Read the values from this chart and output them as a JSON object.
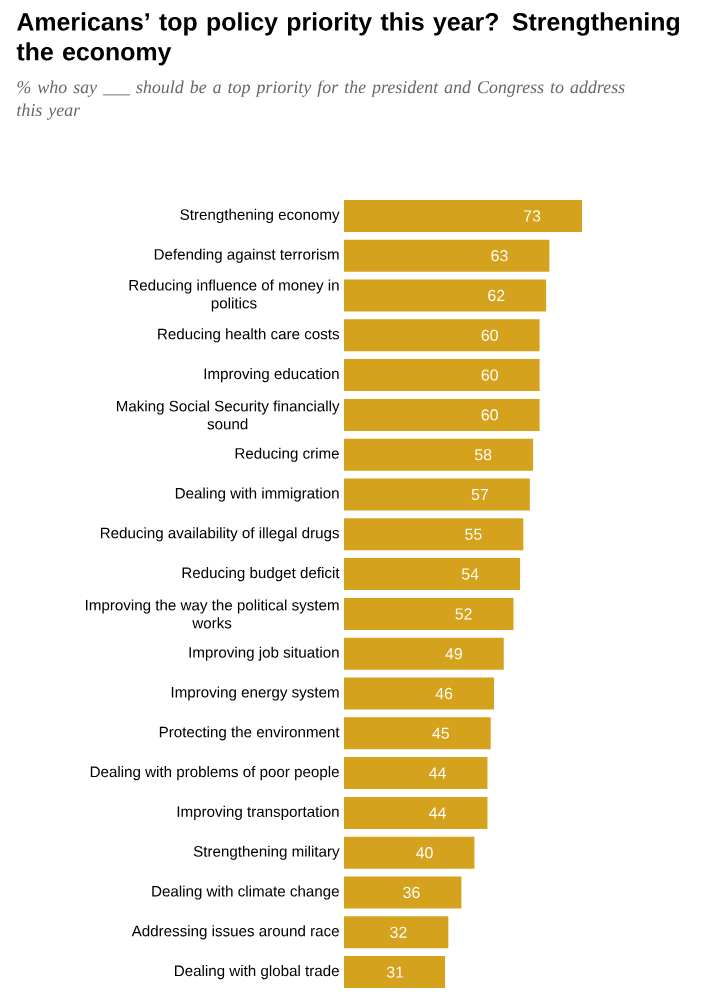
{
  "chart_data": {
    "type": "bar",
    "orientation": "horizontal",
    "title": "Americans’ top policy priority this year? Strengthening the economy",
    "subtitle": "% who say ___ should be a top priority for the president and Congress to address this year",
    "categories": [
      "Strengthening economy",
      "Defending against terrorism",
      "Reducing influence of money in politics",
      "Reducing health care costs",
      "Improving education",
      "Making Social Security financially sound",
      "Reducing crime",
      "Dealing with immigration",
      "Reducing availability of illegal drugs",
      "Reducing budget deficit",
      "Improving the way the political system works",
      "Improving job situation",
      "Improving energy system",
      "Protecting the environment",
      "Dealing with problems of poor people",
      "Improving transportation",
      "Strengthening military",
      "Dealing with climate change",
      "Addressing issues around race",
      "Dealing with global trade"
    ],
    "values": [
      73,
      63,
      62,
      60,
      60,
      60,
      58,
      57,
      55,
      54,
      52,
      49,
      46,
      45,
      44,
      44,
      40,
      36,
      32,
      31
    ],
    "color": "#d5a21d",
    "data_labels": true
  }
}
